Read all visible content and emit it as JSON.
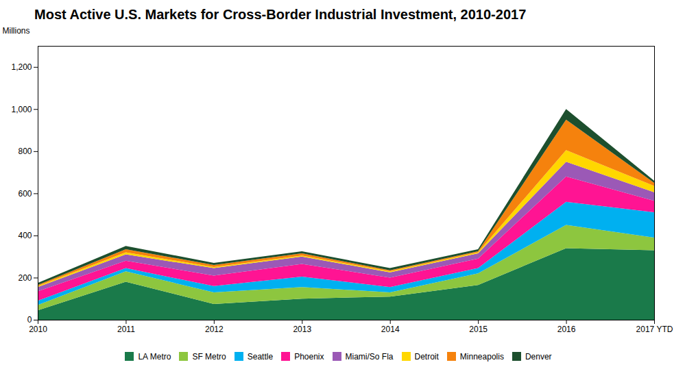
{
  "chart_data": {
    "type": "area",
    "title": "Most Active U.S. Markets for Cross-Border Industrial Investment, 2010-2017",
    "ylabel": "Millions",
    "x": [
      2010,
      2011,
      2012,
      2013,
      2014,
      2015,
      2016,
      2017
    ],
    "series": [
      {
        "name": "LA Metro",
        "color": "#1a7a4a",
        "values": [
          45,
          180,
          75,
          100,
          110,
          165,
          340,
          330
        ]
      },
      {
        "name": "SF Metro",
        "color": "#8dc63f",
        "values": [
          25,
          50,
          55,
          55,
          20,
          55,
          110,
          60
        ]
      },
      {
        "name": "Seattle",
        "color": "#00b0f0",
        "values": [
          20,
          15,
          30,
          50,
          25,
          25,
          110,
          120
        ]
      },
      {
        "name": "Phoenix",
        "color": "#ff1493",
        "values": [
          45,
          35,
          50,
          60,
          45,
          45,
          120,
          55
        ]
      },
      {
        "name": "Miami/So Fla",
        "color": "#9b59b6",
        "values": [
          20,
          30,
          35,
          35,
          25,
          25,
          70,
          40
        ]
      },
      {
        "name": "Detroit",
        "color": "#ffd700",
        "values": [
          5,
          10,
          5,
          5,
          5,
          5,
          55,
          30
        ]
      },
      {
        "name": "Minneapolis",
        "color": "#f5820d",
        "values": [
          5,
          15,
          10,
          10,
          5,
          5,
          145,
          15
        ]
      },
      {
        "name": "Denver",
        "color": "#1d4f2e",
        "values": [
          10,
          15,
          10,
          10,
          10,
          10,
          50,
          10
        ]
      }
    ],
    "xlim": [
      2010,
      2017
    ],
    "xticks": [
      2010,
      2011,
      2012,
      2013,
      2014,
      2015,
      2016,
      {
        "value": 2017,
        "label": "2017 YTD"
      }
    ],
    "ylim": [
      0,
      1300
    ],
    "yticks": [
      0,
      200,
      400,
      600,
      800,
      {
        "value": 1000,
        "label": "1,000"
      },
      {
        "value": 1200,
        "label": "1,200"
      }
    ],
    "stacked": true,
    "grid": false,
    "legend": "bottom"
  }
}
